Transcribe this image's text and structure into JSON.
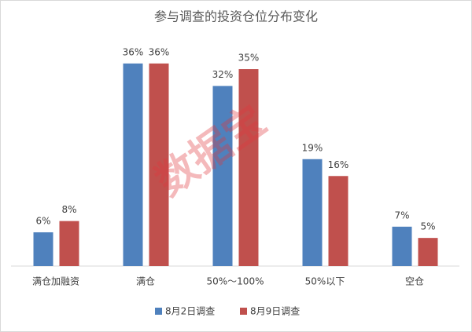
{
  "chart_data": {
    "type": "bar",
    "title": "参与调查的投资仓位分布变化",
    "watermark": "数据宝",
    "categories": [
      "满仓加融资",
      "满仓",
      "50%～100%",
      "50%以下",
      "空仓"
    ],
    "series": [
      {
        "name": "8月2日调查",
        "color": "#4f81bd",
        "values": [
          6,
          36,
          32,
          19,
          7
        ],
        "value_labels": [
          "6%",
          "36%",
          "32%",
          "19%",
          "7%"
        ]
      },
      {
        "name": "8月9日调查",
        "color": "#c0504d",
        "values": [
          8,
          36,
          35,
          16,
          5
        ],
        "value_labels": [
          "8%",
          "36%",
          "35%",
          "16%",
          "5%"
        ]
      }
    ]
  }
}
